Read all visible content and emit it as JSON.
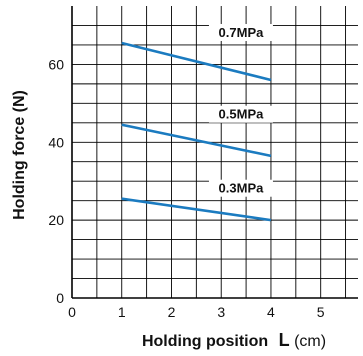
{
  "chart_data": {
    "type": "line",
    "xlabel": "Holding position",
    "xlabel_var": "L",
    "xlabel_unit": "(cm)",
    "ylabel": "Holding force (N)",
    "xlim": [
      0,
      5.75
    ],
    "ylim": [
      0,
      75
    ],
    "x_ticks": [
      0,
      1,
      2,
      3,
      4,
      5
    ],
    "y_ticks": [
      0,
      20,
      40,
      60
    ],
    "grid": true,
    "legend": "inline labels",
    "series": [
      {
        "name": "0.7MPa",
        "x": [
          1,
          4
        ],
        "y": [
          65.5,
          56
        ],
        "color": "#1b7bc0"
      },
      {
        "name": "0.5MPa",
        "x": [
          1,
          4
        ],
        "y": [
          44.5,
          36.5
        ],
        "color": "#1b7bc0"
      },
      {
        "name": "0.3MPa",
        "x": [
          1,
          4
        ],
        "y": [
          25.5,
          20
        ],
        "color": "#1b7bc0"
      }
    ]
  }
}
